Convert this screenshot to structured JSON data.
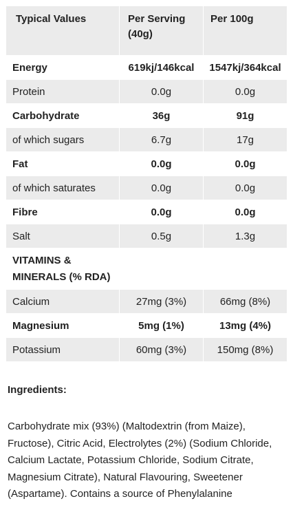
{
  "table": {
    "header": [
      "Typical Values",
      "Per Serving (40g)",
      "Per 100g"
    ],
    "rows": [
      [
        "Energy",
        "619kj/146kcal",
        "1547kj/364kcal"
      ],
      [
        "Protein",
        "0.0g",
        "0.0g"
      ],
      [
        "Carbohydrate",
        "36g",
        "91g"
      ],
      [
        "of which sugars",
        "6.7g",
        "17g"
      ],
      [
        "Fat",
        "0.0g",
        "0.0g"
      ],
      [
        "of which saturates",
        "0.0g",
        "0.0g"
      ],
      [
        "Fibre",
        "0.0g",
        "0.0g"
      ],
      [
        "Salt",
        "0.5g",
        "1.3g"
      ],
      [
        "VITAMINS & MINERALS (% RDA)"
      ],
      [
        "Calcium",
        "27mg (3%)",
        "66mg (8%)"
      ],
      [
        "Magnesium",
        "5mg (1%)",
        "13mg (4%)"
      ],
      [
        "Potassium",
        "60mg (3%)",
        "150mg (8%)"
      ]
    ]
  },
  "ingredients": {
    "title": "Ingredients:",
    "lines": [
      "Carbohydrate mix (93%) (Maltodextrin (from Maize),",
      "Fructose), Citric Acid, Electrolytes (2%) (Sodium Chloride,",
      "Calcium Lactate, Potassium Chloride, Sodium Citrate,",
      "Magnesium Citrate), Natural Flavouring, Sweetener",
      "(Aspartame). Contains a source of Phenylalanine"
    ]
  }
}
